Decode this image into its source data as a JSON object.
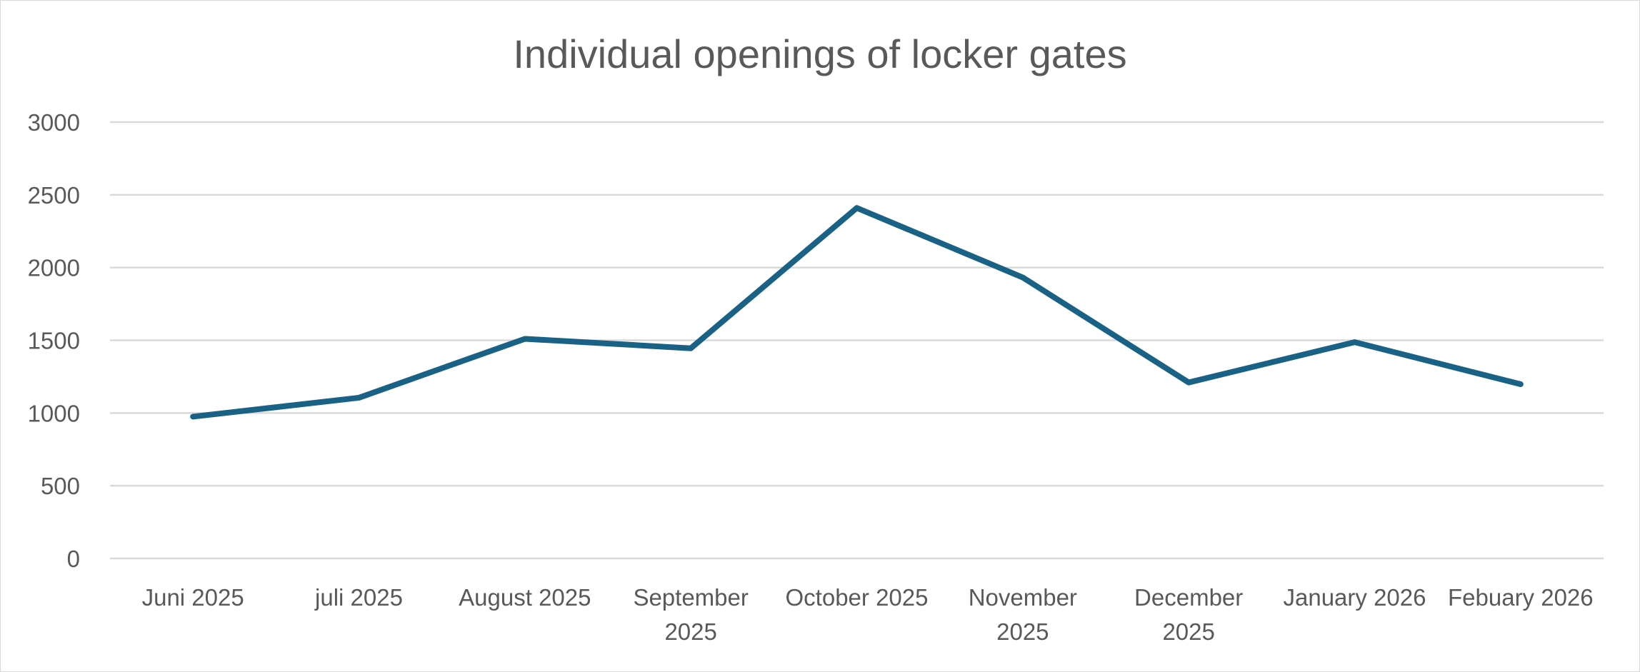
{
  "chart_data": {
    "type": "line",
    "title": "Individual openings of locker gates",
    "xlabel": "",
    "ylabel": "",
    "categories": [
      [
        "Juni 2025"
      ],
      [
        "juli 2025"
      ],
      [
        "August 2025"
      ],
      [
        "September",
        "2025"
      ],
      [
        "October 2025"
      ],
      [
        "November",
        "2025"
      ],
      [
        "December",
        "2025"
      ],
      [
        "January 2026"
      ],
      [
        "Febuary 2026"
      ]
    ],
    "series": [
      {
        "name": "Openings",
        "color": "#1a6285",
        "values": [
          975,
          1105,
          1510,
          1445,
          2410,
          1932,
          1210,
          1487,
          1198
        ]
      }
    ],
    "ylim": [
      0,
      3000
    ],
    "yticks": [
      0,
      500,
      1000,
      1500,
      2000,
      2500,
      3000
    ],
    "grid": true,
    "legend": "none"
  }
}
